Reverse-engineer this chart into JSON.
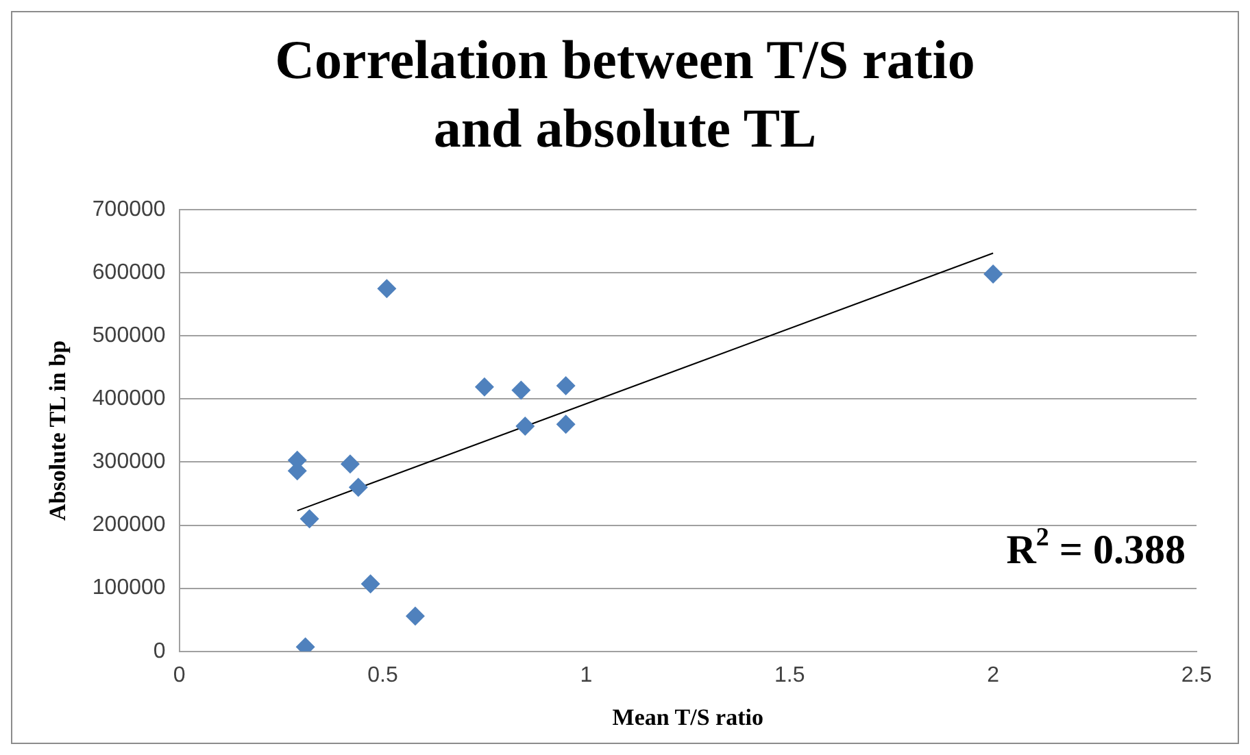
{
  "chart_data": {
    "type": "scatter",
    "title": "Correlation between T/S ratio and absolute TL",
    "xlabel": "Mean T/S ratio",
    "ylabel": "Absolute TL in bp",
    "series": [
      {
        "color": "#4f81bd",
        "x": [
          0.29,
          0.29,
          0.42,
          0.44,
          0.32,
          0.51,
          0.75,
          0.84,
          0.95,
          0.85,
          0.95,
          0.47,
          0.58,
          0.31,
          2.0
        ],
        "values": [
          303000,
          286000,
          297000,
          260000,
          210000,
          575000,
          419000,
          414000,
          421000,
          357000,
          360000,
          107000,
          56000,
          7000,
          598000
        ]
      },
      {
        "type": "line",
        "marker": "none",
        "color": "#000000",
        "x": [
          0.29,
          2.0
        ],
        "values": [
          223000,
          631000
        ]
      }
    ],
    "xlim": [
      0,
      2.5
    ],
    "xticks": [
      0,
      0.5,
      1,
      1.5,
      2,
      2.5
    ],
    "ylim": [
      0,
      700000
    ],
    "yticks": [
      0,
      100000,
      200000,
      300000,
      400000,
      500000,
      600000,
      700000
    ],
    "grid": "y",
    "legend": false,
    "marker": "diamond",
    "annotations": [
      "R$^{2}$ = 0.388"
    ]
  }
}
